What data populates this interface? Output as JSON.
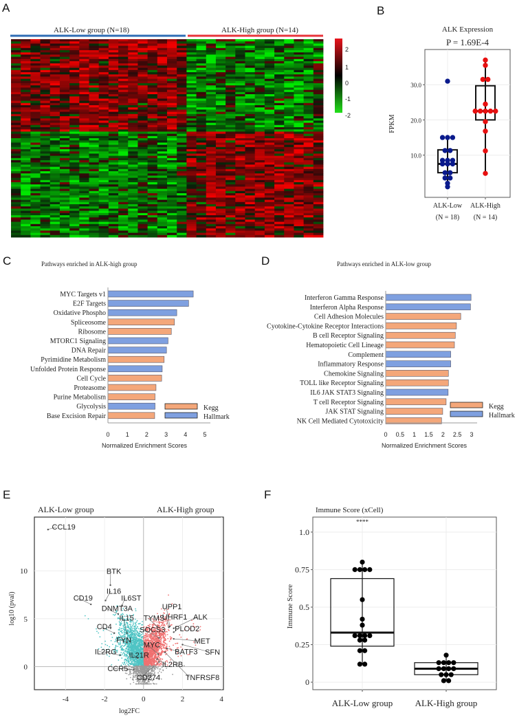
{
  "panels": {
    "a": "A",
    "b": "B",
    "c": "C",
    "d": "D",
    "e": "E",
    "f": "F"
  },
  "chart_data": [
    {
      "id": "heatmap",
      "type": "heatmap",
      "groups": [
        {
          "label": "ALK-Low  group (N=18)",
          "n": 18,
          "color": "#2e6db4"
        },
        {
          "label": "ALK-High  group (N=14)",
          "n": 14,
          "color": "#e8333a"
        }
      ],
      "colorbar": {
        "ticks": [
          "2",
          "1",
          "0",
          "-1",
          "-2"
        ],
        "high_color": "#e8141c",
        "mid_color": "#000000",
        "low_color": "#22e01a"
      }
    },
    {
      "id": "alk-expression",
      "type": "box",
      "title": "ALK Expression",
      "subtitle": "P = 1.69E-4",
      "ylabel": "FPKM",
      "ylim": [
        -2,
        40
      ],
      "yticks": [
        {
          "v": 10,
          "label": "10.0"
        },
        {
          "v": 20,
          "label": "20.0"
        },
        {
          "v": 30,
          "label": "30.0"
        }
      ],
      "categories": [
        {
          "label": "ALK-Low",
          "n_label": "(N = 18)",
          "color": "#0a1a8c",
          "box": {
            "q1": 5,
            "median": 7.5,
            "q3": 11.5,
            "min": 1,
            "max": 15
          },
          "points": [
            31,
            15,
            15,
            15,
            11.3,
            11.3,
            8.5,
            8.5,
            8.5,
            7.5,
            7.5,
            7.5,
            5,
            5,
            3.5,
            3.5,
            2,
            1
          ]
        },
        {
          "label": "ALK-High",
          "n_label": "(N = 14)",
          "color": "#e81010",
          "box": {
            "q1": 20,
            "median": 22.5,
            "q3": 29.7,
            "min": 4.8,
            "max": 37
          },
          "points": [
            37,
            35.5,
            31.5,
            31.5,
            24.5,
            22.5,
            22.5,
            22.5,
            22.5,
            22.5,
            19.5,
            16.8,
            11.2,
            4.8
          ]
        }
      ]
    },
    {
      "id": "pathways-high",
      "type": "bar",
      "orientation": "horizontal",
      "title": "Pathways enriched in ALK-high group",
      "xlabel": "Normalized  Enrichment  Scores",
      "xlim": [
        0,
        5
      ],
      "xticks": [
        "0",
        "1",
        "2",
        "3",
        "4",
        "5"
      ],
      "legend": [
        {
          "label": "Kegg",
          "color": "#f4a77a"
        },
        {
          "label": "Hallmark",
          "color": "#7fa0e0"
        }
      ],
      "bars": [
        {
          "label": "MYC  Targets v1",
          "value": 4.4,
          "set": "Hallmark"
        },
        {
          "label": "E2F  Targets",
          "value": 4.16,
          "set": "Hallmark"
        },
        {
          "label": "Oxidative  Phospho",
          "value": 3.55,
          "set": "Hallmark"
        },
        {
          "label": "Spliceosome",
          "value": 3.43,
          "set": "Kegg"
        },
        {
          "label": "Ribosome",
          "value": 3.27,
          "set": "Kegg"
        },
        {
          "label": "MTORC1  Signaling",
          "value": 3.1,
          "set": "Hallmark"
        },
        {
          "label": "DNA  Repair",
          "value": 3.02,
          "set": "Hallmark"
        },
        {
          "label": "Pyrimidine  Metabolism",
          "value": 2.9,
          "set": "Kegg"
        },
        {
          "label": "Unfolded Protein Response",
          "value": 2.8,
          "set": "Hallmark"
        },
        {
          "label": "Cell  Cycle",
          "value": 2.77,
          "set": "Kegg"
        },
        {
          "label": "Proteasome",
          "value": 2.48,
          "set": "Kegg"
        },
        {
          "label": "Purine  Metabolism",
          "value": 2.43,
          "set": "Kegg"
        },
        {
          "label": "Glycolysis",
          "value": 2.43,
          "set": "Hallmark"
        },
        {
          "label": "Base Excision  Repair",
          "value": 2.41,
          "set": "Kegg"
        }
      ]
    },
    {
      "id": "pathways-low",
      "type": "bar",
      "orientation": "horizontal",
      "title": "Pathways enriched in ALK-low  group",
      "xlabel": "Normalized  Enrichment  Scores",
      "xlim": [
        0,
        3
      ],
      "xticks": [
        "0",
        "0.5",
        "1",
        "1.5",
        "2",
        "2.5",
        "3"
      ],
      "legend": [
        {
          "label": "Kegg",
          "color": "#f4a77a"
        },
        {
          "label": "Hallmark",
          "color": "#7fa0e0"
        }
      ],
      "bars": [
        {
          "label": "Interferon Gamma  Response",
          "value": 2.98,
          "set": "Hallmark"
        },
        {
          "label": "Interferon Alpha Response",
          "value": 2.96,
          "set": "Hallmark"
        },
        {
          "label": "Cell  Adhesion Molecules",
          "value": 2.62,
          "set": "Kegg"
        },
        {
          "label": "Cyotokine-Cytokine  Receptor Interactions",
          "value": 2.47,
          "set": "Kegg"
        },
        {
          "label": "B cell Receptor Signaling",
          "value": 2.43,
          "set": "Kegg"
        },
        {
          "label": "Hematopoietic Cell Lineage",
          "value": 2.4,
          "set": "Kegg"
        },
        {
          "label": "Complement",
          "value": 2.27,
          "set": "Hallmark"
        },
        {
          "label": "Inflammatory  Response",
          "value": 2.27,
          "set": "Hallmark"
        },
        {
          "label": "Chemokine  Signaling",
          "value": 2.19,
          "set": "Kegg"
        },
        {
          "label": "TOLL  like  Receptor Signaling",
          "value": 2.19,
          "set": "Kegg"
        },
        {
          "label": "IL6  JAK STAT3  Signaling",
          "value": 2.18,
          "set": "Hallmark"
        },
        {
          "label": "T cell Receptor Signaling",
          "value": 2.11,
          "set": "Kegg"
        },
        {
          "label": "JAK STAT Signaling",
          "value": 1.99,
          "set": "Kegg"
        },
        {
          "label": "NK  Cell Mediated Cytotoxicity",
          "value": 1.95,
          "set": "Kegg"
        }
      ]
    },
    {
      "id": "volcano",
      "type": "scatter",
      "left_title": "ALK-Low group",
      "right_title": "ALK-High  group",
      "xlabel": "log2FC",
      "ylabel": "log10 (pval)",
      "xlim": [
        -5.6,
        4.1
      ],
      "ylim": [
        -2.4,
        15.6
      ],
      "xticks": [
        -4,
        -2,
        0,
        2,
        4
      ],
      "yticks": [
        0,
        5,
        10
      ],
      "colors": {
        "low": "#4fc4c4",
        "high": "#f07070",
        "ns": "#9a9a9a"
      },
      "labels": [
        {
          "text": "CCL19",
          "x": -4.9,
          "y": 14.3,
          "lx": -4.7,
          "ly": 14.3
        },
        {
          "text": "BTK",
          "x": -1.7,
          "y": 8.5,
          "lx": -1.9,
          "ly": 9.7
        },
        {
          "text": "IL16",
          "x": -1.95,
          "y": 6.9,
          "lx": -1.9,
          "ly": 7.6
        },
        {
          "text": "CD19",
          "x": -2.7,
          "y": 6.5,
          "lx": -3.6,
          "ly": 6.9
        },
        {
          "text": "IL6ST",
          "x": -1.1,
          "y": 6.4,
          "lx": -1.15,
          "ly": 6.9
        },
        {
          "text": "DNMT3A",
          "x": -1.3,
          "y": 5.5,
          "lx": -2.15,
          "ly": 5.8
        },
        {
          "text": "IL15",
          "x": -0.85,
          "y": 3.5,
          "lx": -1.25,
          "ly": 4.8
        },
        {
          "text": "CD4",
          "x": -1.5,
          "y": 3.5,
          "lx": -2.4,
          "ly": 3.9
        },
        {
          "text": "FYN",
          "x": -0.85,
          "y": 2.5,
          "lx": -1.4,
          "ly": 2.5
        },
        {
          "text": "IL2RG",
          "x": -1.2,
          "y": 1.2,
          "lx": -2.5,
          "ly": 1.3
        },
        {
          "text": "IL21R",
          "x": -0.3,
          "y": 0.9,
          "lx": -0.75,
          "ly": 0.95
        },
        {
          "text": "CCR5",
          "x": -0.5,
          "y": -0.3,
          "lx": -1.85,
          "ly": -0.45
        },
        {
          "text": "TYMS",
          "x": 0.7,
          "y": 4.2,
          "lx": 0.0,
          "ly": 4.8
        },
        {
          "text": "SOCS3",
          "x": 0.8,
          "y": 3.0,
          "lx": -0.2,
          "ly": 3.6
        },
        {
          "text": "MYC",
          "x": 0.75,
          "y": 1.3,
          "lx": 0.0,
          "ly": 2.0
        },
        {
          "text": "UPP1",
          "x": 1.35,
          "y": 4.2,
          "lx": 0.95,
          "ly": 6.0
        },
        {
          "text": "UHRF1",
          "x": 1.3,
          "y": 4.1,
          "lx": 0.95,
          "ly": 4.9
        },
        {
          "text": "ALK",
          "x": 1.55,
          "y": 4.0,
          "lx": 2.55,
          "ly": 4.9
        },
        {
          "text": "PLOD2",
          "x": 1.55,
          "y": 3.6,
          "lx": 1.6,
          "ly": 3.7
        },
        {
          "text": "MET",
          "x": 1.55,
          "y": 2.9,
          "lx": 2.6,
          "ly": 2.4
        },
        {
          "text": "SFN",
          "x": 2.0,
          "y": 2.3,
          "lx": 3.15,
          "ly": 1.25
        },
        {
          "text": "BATF3",
          "x": 1.2,
          "y": 1.9,
          "lx": 1.6,
          "ly": 1.3
        },
        {
          "text": "IL2RB",
          "x": 0.7,
          "y": 0.8,
          "lx": 0.95,
          "ly": -0.05
        },
        {
          "text": "TNFRSF8",
          "x": 1.1,
          "y": 1.5,
          "lx": 2.15,
          "ly": -1.4
        },
        {
          "text": "CD274",
          "x": 0.8,
          "y": 0.5,
          "lx": -0.35,
          "ly": -1.4
        }
      ]
    },
    {
      "id": "immune-score",
      "type": "box",
      "title": "Immune  Score (xCell)",
      "ylabel": "Immune  Score",
      "significance": "****",
      "ylim": [
        -0.05,
        1.1
      ],
      "yticks": [
        {
          "v": 0,
          "label": "0"
        },
        {
          "v": 0.25,
          "label": "0.25"
        },
        {
          "v": 0.5,
          "label": "0.5"
        },
        {
          "v": 0.75,
          "label": "0.75"
        },
        {
          "v": 1,
          "label": "1.0"
        }
      ],
      "categories": [
        {
          "label": "ALK-Low group",
          "color": "#000000",
          "box": {
            "q1": 0.24,
            "median": 0.33,
            "q3": 0.69,
            "min": 0.12,
            "max": 0.8
          },
          "points": [
            0.8,
            0.75,
            0.75,
            0.75,
            0.75,
            0.55,
            0.42,
            0.38,
            0.31,
            0.31,
            0.31,
            0.31,
            0.28,
            0.28,
            0.21,
            0.21,
            0.12,
            0.12
          ]
        },
        {
          "label": "ALK-High  group",
          "color": "#000000",
          "box": {
            "q1": 0.05,
            "median": 0.09,
            "q3": 0.13,
            "min": 0.01,
            "max": 0.18
          },
          "points": [
            0.18,
            0.13,
            0.13,
            0.13,
            0.13,
            0.09,
            0.09,
            0.09,
            0.09,
            0.05,
            0.05,
            0.05,
            0.01,
            0.01
          ]
        }
      ]
    }
  ]
}
